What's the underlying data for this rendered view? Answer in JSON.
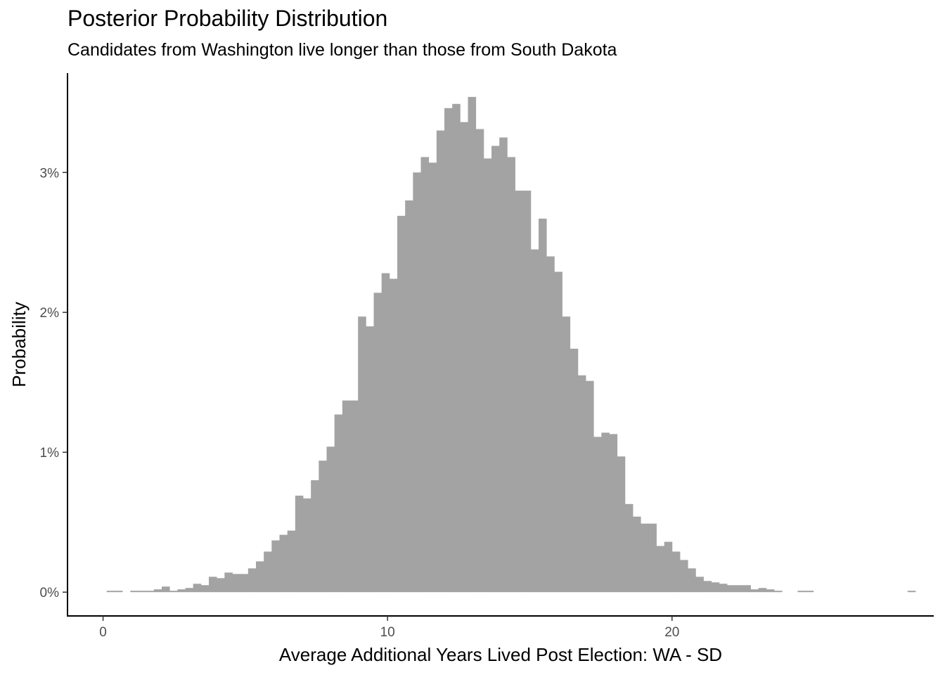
{
  "chart_data": {
    "type": "bar",
    "title": "Posterior Probability Distribution",
    "subtitle": "Candidates from Washington live longer than those from South Dakota",
    "xlabel": "Average Additional Years Lived Post Election: WA - SD",
    "ylabel": "Probability",
    "xlim": [
      -1.25,
      29.2
    ],
    "ylim": [
      -0.0017,
      0.0371
    ],
    "x_ticks": [
      0,
      10,
      20
    ],
    "x_tick_labels": [
      "0",
      "10",
      "20"
    ],
    "y_ticks": [
      0,
      0.01,
      0.02,
      0.03
    ],
    "y_tick_labels": [
      "0%",
      "1%",
      "2%",
      "3%"
    ],
    "grid": false,
    "bar_color": "#a3a3a3",
    "bin_width": 0.276,
    "bin_start": 0.13,
    "values": [
      0.0001,
      0.0001,
      0.0,
      0.0001,
      0.0001,
      0.0001,
      0.0002,
      0.0004,
      0.0001,
      0.0002,
      0.0003,
      0.0006,
      0.0005,
      0.0011,
      0.001,
      0.0014,
      0.0013,
      0.0013,
      0.0017,
      0.0022,
      0.0029,
      0.0037,
      0.0041,
      0.0044,
      0.0069,
      0.0067,
      0.008,
      0.0094,
      0.0104,
      0.0127,
      0.0137,
      0.0137,
      0.0197,
      0.019,
      0.0214,
      0.0228,
      0.0224,
      0.0269,
      0.028,
      0.03,
      0.0311,
      0.0307,
      0.033,
      0.0346,
      0.0349,
      0.0336,
      0.0354,
      0.0331,
      0.031,
      0.0319,
      0.0325,
      0.0311,
      0.0287,
      0.0287,
      0.0245,
      0.0267,
      0.024,
      0.0229,
      0.0197,
      0.0174,
      0.0155,
      0.0151,
      0.0111,
      0.0114,
      0.0113,
      0.0097,
      0.0063,
      0.0054,
      0.0049,
      0.0049,
      0.0033,
      0.0036,
      0.0029,
      0.0023,
      0.0017,
      0.0011,
      0.0008,
      0.0007,
      0.0006,
      0.0005,
      0.0005,
      0.0005,
      0.0002,
      0.0003,
      0.0002,
      0.0001,
      0.0,
      0.0,
      0.0001,
      0.0001,
      0.0,
      0.0,
      0.0,
      0.0,
      0.0,
      0.0,
      0.0,
      0.0,
      0.0,
      0.0,
      0.0,
      0.0,
      0.0001
    ]
  }
}
